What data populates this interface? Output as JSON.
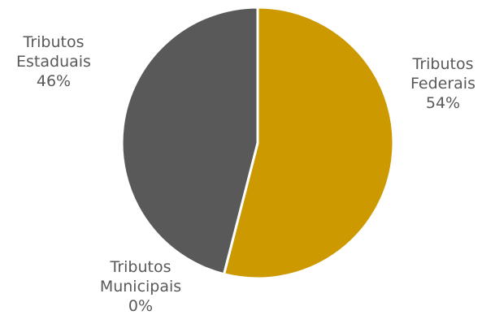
{
  "chart_data": {
    "type": "pie",
    "title": "",
    "slices": [
      {
        "name": "Tributos Federais",
        "value": 54,
        "label_lines": [
          "Tributos",
          "Federais",
          "54%"
        ],
        "color": "#CC9900"
      },
      {
        "name": "Tributos Municipais",
        "value": 0,
        "label_lines": [
          "Tributos",
          "Municipais",
          "0%"
        ],
        "color": "#808080"
      },
      {
        "name": "Tributos Estaduais",
        "value": 46,
        "label_lines": [
          "Tributos",
          "Estaduais",
          "46%"
        ],
        "color": "#595959"
      }
    ],
    "label_color": "#595959",
    "legend": "none"
  }
}
